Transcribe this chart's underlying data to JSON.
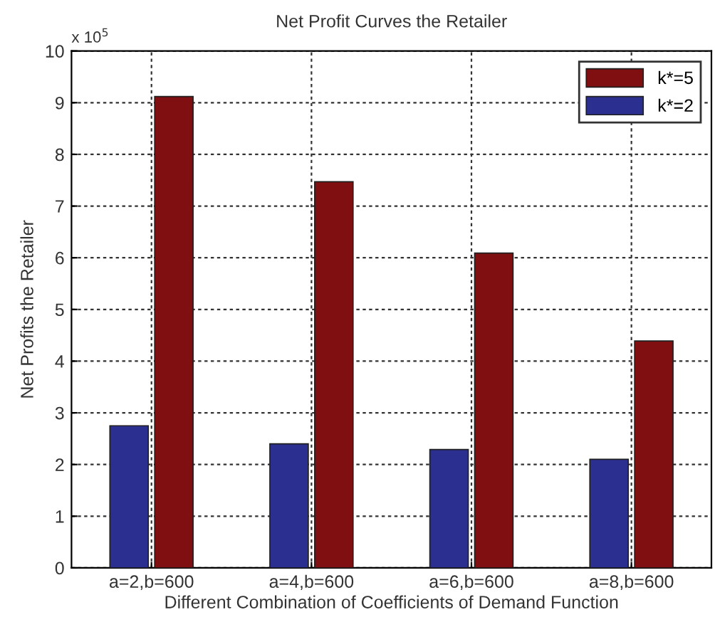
{
  "chart_data": {
    "type": "bar",
    "title": "Net Profit Curves the Retailer",
    "xlabel": "Different Combination of Coefficients of Demand Function",
    "ylabel": "Net Profits the Retailer",
    "categories": [
      "a=2,b=600",
      "a=4,b=600",
      "a=6,b=600",
      "a=8,b=600"
    ],
    "series": [
      {
        "name": "k*=2",
        "color": "#2b2f8f",
        "values": [
          2.75,
          2.4,
          2.29,
          2.1
        ]
      },
      {
        "name": "k*=5",
        "color": "#7f0f10",
        "values": [
          9.12,
          7.47,
          6.09,
          4.39
        ]
      }
    ],
    "ylim": [
      0,
      10
    ],
    "yticks": [
      0,
      1,
      2,
      3,
      4,
      5,
      6,
      7,
      8,
      9,
      10
    ],
    "grid": true,
    "legend": "top right",
    "annotations": [
      "x 10$^{5}$"
    ]
  }
}
